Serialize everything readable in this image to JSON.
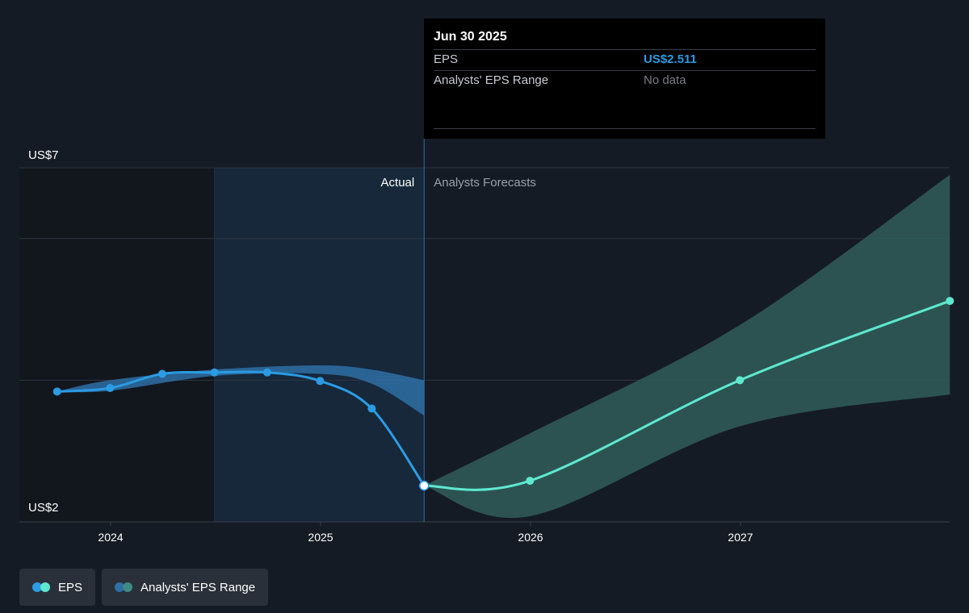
{
  "chart_data": {
    "type": "line",
    "title": "",
    "xlabel": "",
    "ylabel": "",
    "y_tick_labels": [
      "US$7",
      "US$2"
    ],
    "ylim": [
      2,
      7
    ],
    "x_tick_labels": [
      "2024",
      "2025",
      "2026",
      "2027"
    ],
    "xlim": [
      "2023-06-01",
      "2027-12-31"
    ],
    "grid": true,
    "legend_position": "bottom-left",
    "region_labels": {
      "past": "Actual",
      "future": "Analysts Forecasts"
    },
    "divider_date": "2025-06-30",
    "colors": {
      "eps_actual": "#2b9be4",
      "eps_forecast": "#5ee8cf",
      "range_actual": "#2e6fa6",
      "range_forecast": "#2f5a58"
    },
    "series": [
      {
        "name": "EPS",
        "points": [
          {
            "x": "2023-09-30",
            "y": 3.84
          },
          {
            "x": "2023-12-31",
            "y": 3.89
          },
          {
            "x": "2024-03-31",
            "y": 4.09
          },
          {
            "x": "2024-06-30",
            "y": 4.11
          },
          {
            "x": "2024-09-30",
            "y": 4.11
          },
          {
            "x": "2024-12-31",
            "y": 3.99
          },
          {
            "x": "2025-03-31",
            "y": 3.6
          },
          {
            "x": "2025-06-30",
            "y": 2.511
          }
        ]
      },
      {
        "name": "EPS",
        "points": [
          {
            "x": "2025-06-30",
            "y": 2.511
          },
          {
            "x": "2025-12-31",
            "y": 2.58
          },
          {
            "x": "2026-12-31",
            "y": 4.0
          },
          {
            "x": "2027-12-31",
            "y": 5.12
          }
        ]
      },
      {
        "name": "Analysts' EPS Range",
        "range": [
          {
            "x": "2023-09-30",
            "low": 3.84,
            "high": 3.84
          },
          {
            "x": "2023-12-31",
            "low": 3.85,
            "high": 4.0
          },
          {
            "x": "2024-06-30",
            "low": 4.06,
            "high": 4.15
          },
          {
            "x": "2024-12-31",
            "low": 4.09,
            "high": 4.21
          },
          {
            "x": "2025-03-31",
            "low": 3.95,
            "high": 4.15
          },
          {
            "x": "2025-06-30",
            "low": 3.5,
            "high": 4.0
          }
        ]
      },
      {
        "name": "Analysts' EPS Range",
        "range": [
          {
            "x": "2025-06-30",
            "low": 2.511,
            "high": 2.511
          },
          {
            "x": "2025-12-31",
            "low": 2.08,
            "high": 3.25
          },
          {
            "x": "2026-12-31",
            "low": 3.35,
            "high": 4.78
          },
          {
            "x": "2027-12-31",
            "low": 3.8,
            "high": 6.9
          }
        ]
      }
    ]
  },
  "tooltip": {
    "date": "Jun 30 2025",
    "eps_label": "EPS",
    "eps_value": "US$2.511",
    "range_label": "Analysts' EPS Range",
    "range_value": "No data"
  },
  "legend": [
    {
      "label": "EPS",
      "colors": [
        "#2b9be4",
        "#5ee8cf"
      ]
    },
    {
      "label": "Analysts' EPS Range",
      "colors": [
        "#2e6fa6",
        "#3f8a84"
      ]
    }
  ]
}
